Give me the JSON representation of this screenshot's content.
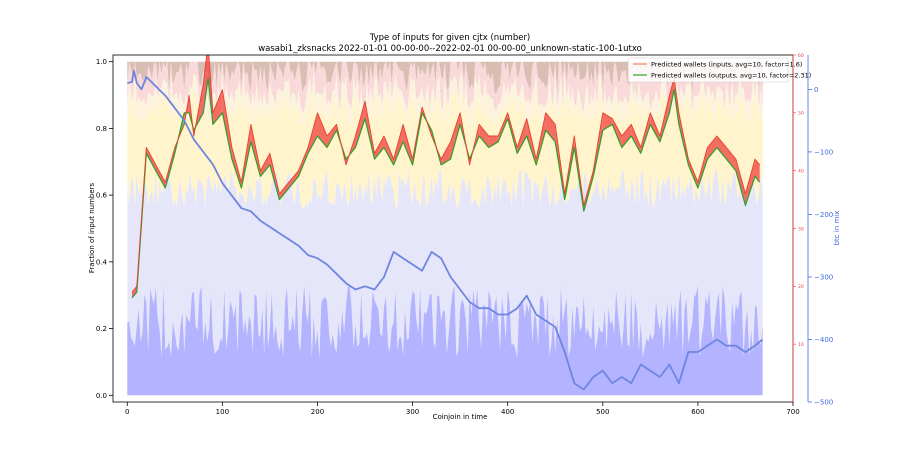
{
  "chart_data": {
    "type": "area",
    "title": "Type of inputs for given cjtx (number)",
    "subtitle": "wasabi1_zksnacks 2022-01-01 00-00-00--2022-02-01 00-00-00_unknown-static-100-1utxo",
    "xlabel": "Coinjoin in time",
    "ylabel": "Fraction of input numbers",
    "y2label": "",
    "y3label": "btc in mix",
    "xlim": [
      -15,
      700
    ],
    "ylim": [
      -0.02,
      1.02
    ],
    "y2lim": [
      0,
      60
    ],
    "y3lim": [
      -500,
      55
    ],
    "xticks": [
      "0",
      "100",
      "200",
      "300",
      "400",
      "500",
      "600",
      "700"
    ],
    "yticks": [
      "0.0",
      "0.2",
      "0.4",
      "0.6",
      "0.8",
      "1.0"
    ],
    "y2ticks": [
      "10",
      "20",
      "30",
      "40",
      "50",
      "60"
    ],
    "y3ticks": [
      "0",
      "−100",
      "−200",
      "−300",
      "−400",
      "−500"
    ],
    "grid": false,
    "legend_position": "top-right",
    "colors": {
      "stack_fresh": "#b3b3ff",
      "stack_remix": "#e6e6fa",
      "stack_fee": "#fff4cc",
      "stack_friends": "#fbf3de",
      "stack_other": "#f9d9d9",
      "stack_top": "#d9bfb3",
      "inputs_line": "#ff7f66",
      "outputs_line": "#2ca02c",
      "fill_between_pos": "#f0403d",
      "fill_between_neg": "#3fa83f",
      "btc_line": "#6f86e0",
      "red_axis": "#e8403d",
      "blue_axis": "#4169e1"
    },
    "series": [
      {
        "name": "Predicted wallets (inputs, avg=10, factor=1.6)",
        "axis": "y2",
        "x": [
          5,
          10,
          20,
          30,
          40,
          50,
          60,
          65,
          70,
          80,
          85,
          90,
          100,
          110,
          120,
          130,
          140,
          150,
          160,
          170,
          180,
          190,
          200,
          210,
          220,
          230,
          240,
          250,
          260,
          270,
          280,
          290,
          300,
          310,
          320,
          330,
          340,
          350,
          360,
          370,
          380,
          390,
          400,
          410,
          420,
          430,
          440,
          450,
          460,
          470,
          480,
          490,
          500,
          510,
          520,
          530,
          540,
          550,
          560,
          570,
          575,
          580,
          590,
          600,
          610,
          620,
          630,
          640,
          650,
          660,
          665
        ],
        "values": [
          19,
          20,
          44,
          41,
          38,
          44,
          48,
          53,
          46,
          55,
          62,
          50,
          54,
          44,
          38,
          48,
          40,
          43,
          36,
          38,
          40,
          44,
          50,
          46,
          48,
          41,
          46,
          52,
          43,
          46,
          42,
          48,
          42,
          51,
          46,
          42,
          45,
          50,
          41,
          48,
          46,
          46,
          50,
          44,
          49,
          42,
          50,
          48,
          36,
          46,
          34,
          40,
          50,
          49,
          46,
          48,
          44,
          50,
          46,
          53,
          56,
          50,
          42,
          38,
          44,
          46,
          44,
          42,
          36,
          42,
          41
        ]
      },
      {
        "name": "Predicted wallets (outputs, avg=10, factor=2.31)",
        "axis": "y2",
        "x": [
          5,
          10,
          20,
          30,
          40,
          50,
          60,
          65,
          70,
          80,
          85,
          90,
          100,
          110,
          120,
          130,
          140,
          150,
          160,
          170,
          180,
          190,
          200,
          210,
          220,
          230,
          240,
          250,
          260,
          270,
          280,
          290,
          300,
          310,
          320,
          330,
          340,
          350,
          360,
          370,
          380,
          390,
          400,
          410,
          420,
          430,
          440,
          450,
          460,
          470,
          480,
          490,
          500,
          510,
          520,
          530,
          540,
          550,
          560,
          570,
          575,
          580,
          590,
          600,
          610,
          620,
          630,
          640,
          650,
          660,
          665
        ],
        "values": [
          18,
          19,
          43,
          40,
          37,
          43,
          50,
          50,
          47,
          50,
          56,
          48,
          50,
          42,
          37,
          45,
          39,
          41,
          35,
          37,
          39,
          43,
          46,
          44,
          47,
          42,
          44,
          49,
          42,
          44,
          41,
          45,
          41,
          50,
          47,
          41,
          42,
          48,
          42,
          46,
          44,
          45,
          49,
          43,
          46,
          41,
          47,
          45,
          35,
          44,
          33,
          39,
          47,
          48,
          44,
          46,
          43,
          48,
          45,
          50,
          54,
          48,
          41,
          37,
          42,
          44,
          42,
          40,
          34,
          39,
          38
        ]
      },
      {
        "name": "btc in mix",
        "axis": "y3",
        "x": [
          0,
          5,
          7,
          10,
          15,
          20,
          30,
          40,
          50,
          60,
          70,
          80,
          90,
          100,
          110,
          120,
          130,
          140,
          150,
          160,
          170,
          180,
          190,
          200,
          210,
          220,
          230,
          240,
          250,
          260,
          270,
          280,
          290,
          300,
          310,
          320,
          330,
          340,
          350,
          360,
          370,
          380,
          390,
          400,
          410,
          420,
          430,
          440,
          450,
          460,
          470,
          480,
          490,
          500,
          510,
          520,
          530,
          540,
          550,
          560,
          570,
          580,
          590,
          600,
          610,
          620,
          630,
          640,
          650,
          660,
          668
        ],
        "values": [
          10,
          12,
          30,
          10,
          0,
          20,
          5,
          -10,
          -30,
          -50,
          -80,
          -100,
          -120,
          -150,
          -170,
          -190,
          -195,
          -210,
          -220,
          -230,
          -240,
          -250,
          -265,
          -270,
          -280,
          -295,
          -310,
          -320,
          -315,
          -320,
          -300,
          -260,
          -270,
          -280,
          -290,
          -260,
          -270,
          -300,
          -320,
          -340,
          -350,
          -350,
          -360,
          -360,
          -350,
          -330,
          -360,
          -370,
          -380,
          -420,
          -470,
          -480,
          -460,
          -450,
          -470,
          -460,
          -470,
          -440,
          -450,
          -460,
          -440,
          -470,
          -420,
          -420,
          -410,
          -400,
          -410,
          -410,
          -420,
          -410,
          -400
        ]
      }
    ],
    "stack_layers": [
      "stack_fresh",
      "stack_remix",
      "stack_fee",
      "stack_friends",
      "stack_other",
      "stack_top"
    ],
    "stack_bounds_mean": [
      0.22,
      0.62,
      0.86,
      0.9,
      0.98,
      1.0
    ]
  }
}
